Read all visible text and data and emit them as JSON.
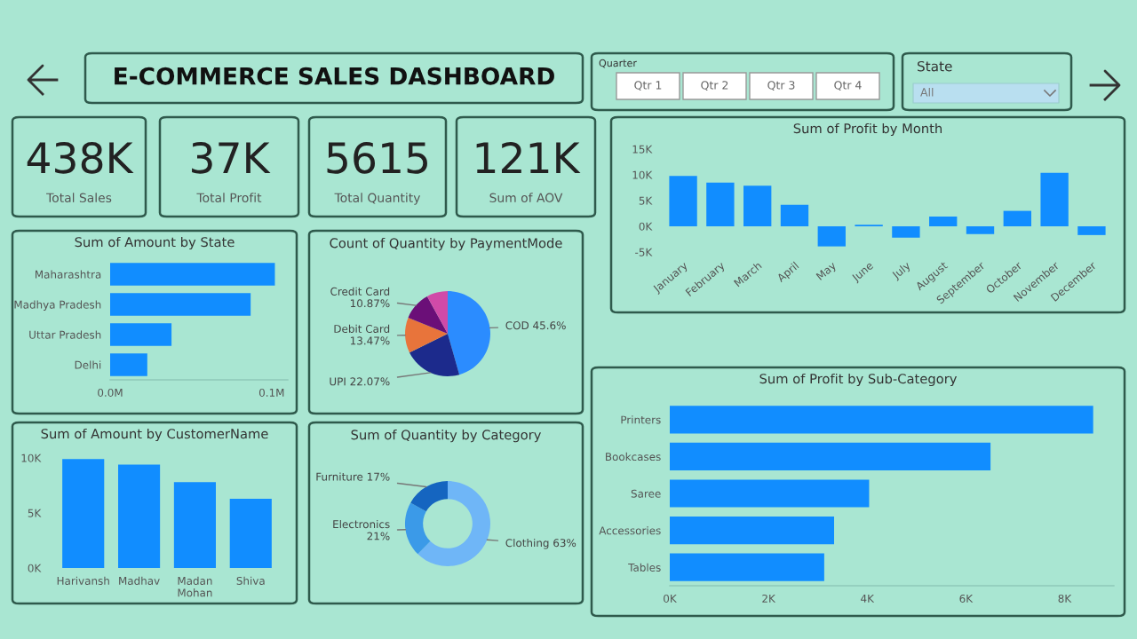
{
  "chart_data": [
    {
      "type": "other",
      "title": "E-COMMERCE SALES DASHBOARD"
    },
    {
      "type": "other",
      "title": "Quarter",
      "annotations": [
        "Qtr 1",
        "Qtr 2",
        "Qtr 3",
        "Qtr 4"
      ]
    },
    {
      "type": "other",
      "title": "State",
      "annotations": [
        "All"
      ]
    },
    {
      "type": "other",
      "annotations": [
        "438K",
        "Total Sales"
      ]
    },
    {
      "type": "other",
      "annotations": [
        "37K",
        "Total Profit"
      ]
    },
    {
      "type": "other",
      "annotations": [
        "5615",
        "Total Quantity"
      ]
    },
    {
      "type": "other",
      "annotations": [
        "121K",
        "Sum of AOV"
      ]
    },
    {
      "type": "bar",
      "title": "Sum of Profit by Month",
      "categories": [
        "January",
        "February",
        "March",
        "April",
        "May",
        "June",
        "July",
        "August",
        "September",
        "October",
        "November",
        "December"
      ],
      "values": [
        9800,
        8500,
        7900,
        4200,
        -3900,
        300,
        -2200,
        1900,
        -1500,
        3000,
        10400,
        -1700
      ],
      "color": "#118dff",
      "ylim": [
        -5000,
        15000
      ],
      "yticks": [
        {
          "value": -5000,
          "label": "-5K"
        },
        {
          "value": 0,
          "label": "0K"
        },
        {
          "value": 5000,
          "label": "5K"
        },
        {
          "value": 10000,
          "label": "10K"
        },
        {
          "value": 15000,
          "label": "15K"
        }
      ],
      "grid": false
    },
    {
      "type": "bar",
      "orientation": "horizontal",
      "title": "Sum of Amount by State",
      "categories": [
        "Maharashtra",
        "Madhya Pradesh",
        "Uttar Pradesh",
        "Delhi"
      ],
      "values": [
        0.102,
        0.087,
        0.038,
        0.023
      ],
      "color": "#118dff",
      "xlim": [
        0,
        0.11
      ],
      "xticks": [
        {
          "value": 0,
          "label": "0.0M"
        },
        {
          "value": 0.1,
          "label": "0.1M"
        }
      ],
      "grid": false
    },
    {
      "type": "pie",
      "title": "Count of Quantity by PaymentMode",
      "categories": [
        "COD",
        "UPI",
        "Debit Card",
        "Credit Card",
        null
      ],
      "values": [
        45.6,
        22.07,
        13.47,
        10.87,
        7.99
      ],
      "value_labels": [
        "45.6%",
        "22.07%",
        "13.47%",
        "10.87%",
        null
      ],
      "colors": [
        "#2b8cff",
        "#1c2a8c",
        "#e8743b",
        "#6b0f78",
        "#d04aa8"
      ]
    },
    {
      "type": "bar",
      "title": "Sum of Amount by CustomerName",
      "categories": [
        "Harivansh",
        "Madhav",
        "Madan Mohan",
        "Shiva"
      ],
      "values": [
        9900,
        9400,
        7800,
        6300
      ],
      "color": "#118dff",
      "ylim": [
        0,
        10000
      ],
      "yticks": [
        {
          "value": 0,
          "label": "0K"
        },
        {
          "value": 5000,
          "label": "5K"
        },
        {
          "value": 10000,
          "label": "10K"
        }
      ],
      "grid": false
    },
    {
      "type": "donut",
      "title": "Sum of Quantity by Category",
      "categories": [
        "Clothing",
        "Electronics",
        "Furniture"
      ],
      "values": [
        63,
        21,
        17
      ],
      "value_labels": [
        "63%",
        "21%",
        "17%"
      ],
      "colors": [
        "#6fb6f7",
        "#3b9ae8",
        "#1565c0"
      ]
    },
    {
      "type": "bar",
      "orientation": "horizontal",
      "title": "Sum of Profit by Sub-Category",
      "categories": [
        "Printers",
        "Bookcases",
        "Saree",
        "Accessories",
        "Tables"
      ],
      "values": [
        8580,
        6500,
        4040,
        3330,
        3130
      ],
      "color": "#118dff",
      "xlim": [
        0,
        9000
      ],
      "xticks": [
        {
          "value": 0,
          "label": "0K"
        },
        {
          "value": 2000,
          "label": "2K"
        },
        {
          "value": 4000,
          "label": "4K"
        },
        {
          "value": 6000,
          "label": "6K"
        },
        {
          "value": 8000,
          "label": "8K"
        }
      ],
      "grid": false
    }
  ]
}
